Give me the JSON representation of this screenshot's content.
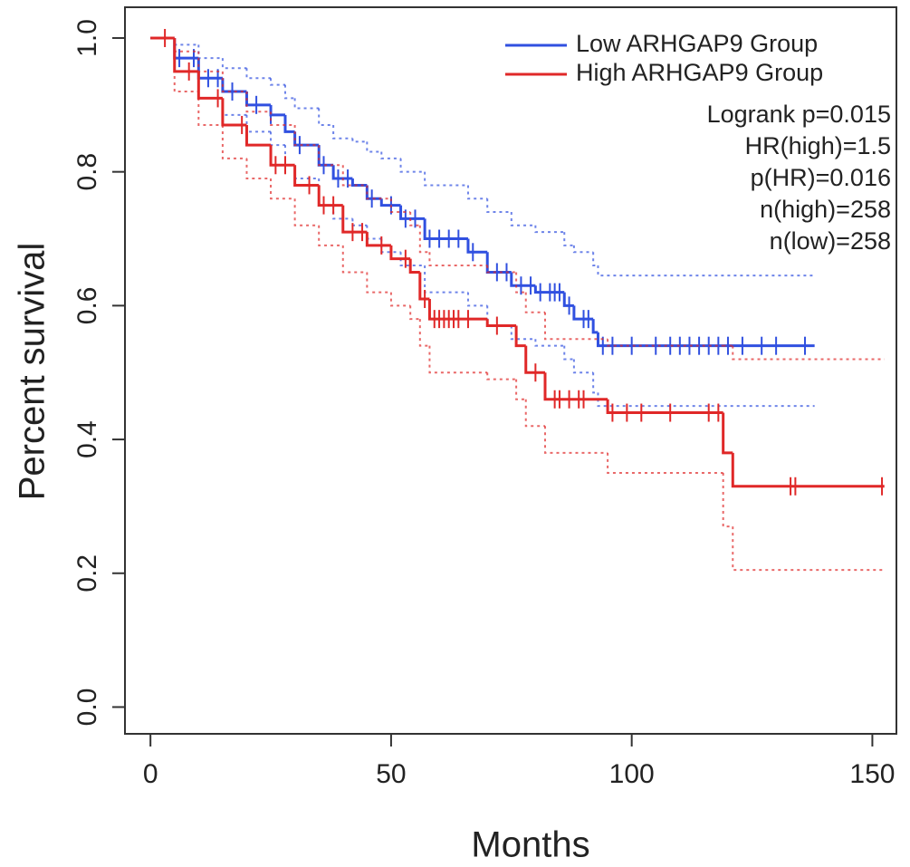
{
  "chart_data": {
    "type": "survival",
    "xlabel": "Months",
    "ylabel": "Percent survival",
    "xlim": [
      -5.3,
      155
    ],
    "ylim": [
      -0.04,
      1.046
    ],
    "xticks": [
      0,
      50,
      100,
      150
    ],
    "yticks": [
      {
        "value": 0,
        "label": "0.0"
      },
      0.2,
      0.4,
      0.6,
      0.8,
      {
        "value": 1,
        "label": "1.0"
      }
    ],
    "series": [
      {
        "name": "Low ARHGAP9 Group",
        "color": "#3050e0",
        "x": [
          0,
          5,
          10,
          15,
          20,
          25,
          28,
          30,
          35,
          38,
          42,
          45,
          48,
          52,
          57,
          66,
          70,
          75,
          80,
          86,
          88,
          92,
          93,
          138
        ],
        "y": [
          1.0,
          0.97,
          0.94,
          0.92,
          0.9,
          0.885,
          0.86,
          0.84,
          0.81,
          0.79,
          0.78,
          0.76,
          0.75,
          0.73,
          0.7,
          0.68,
          0.65,
          0.63,
          0.62,
          0.6,
          0.58,
          0.56,
          0.54,
          0.54
        ],
        "ci_upper": [
          1.0,
          0.99,
          0.97,
          0.955,
          0.94,
          0.93,
          0.91,
          0.895,
          0.87,
          0.85,
          0.845,
          0.83,
          0.82,
          0.8,
          0.78,
          0.76,
          0.74,
          0.72,
          0.71,
          0.69,
          0.68,
          0.66,
          0.645,
          0.645
        ],
        "ci_lower": [
          1.0,
          0.95,
          0.91,
          0.885,
          0.86,
          0.84,
          0.81,
          0.79,
          0.75,
          0.73,
          0.72,
          0.7,
          0.68,
          0.66,
          0.62,
          0.6,
          0.57,
          0.55,
          0.54,
          0.52,
          0.5,
          0.47,
          0.45,
          0.45
        ],
        "censor": [
          6,
          9,
          12,
          14,
          17,
          22,
          25,
          31,
          36,
          39,
          41,
          46,
          50,
          53,
          55,
          58,
          60,
          62,
          64,
          67,
          72,
          74,
          77,
          79,
          81,
          83,
          84,
          85,
          87,
          90,
          91,
          94,
          96,
          100,
          105,
          108,
          110,
          112,
          114,
          116,
          118,
          120,
          123,
          127,
          130,
          136
        ]
      },
      {
        "name": "High ARHGAP9 Group",
        "color": "#e02828",
        "x": [
          0,
          5,
          10,
          15,
          20,
          25,
          30,
          35,
          40,
          45,
          50,
          54,
          56,
          58,
          70,
          76,
          78,
          82,
          95,
          119,
          121,
          152.5
        ],
        "y": [
          1.0,
          0.95,
          0.91,
          0.87,
          0.84,
          0.81,
          0.78,
          0.75,
          0.71,
          0.69,
          0.67,
          0.65,
          0.61,
          0.58,
          0.57,
          0.54,
          0.5,
          0.46,
          0.44,
          0.38,
          0.33,
          0.33
        ],
        "ci_upper": [
          1.0,
          0.98,
          0.95,
          0.92,
          0.89,
          0.87,
          0.84,
          0.81,
          0.78,
          0.76,
          0.74,
          0.72,
          0.68,
          0.66,
          0.65,
          0.62,
          0.59,
          0.55,
          0.54,
          0.54,
          0.52,
          0.52
        ],
        "ci_lower": [
          1.0,
          0.92,
          0.87,
          0.82,
          0.79,
          0.76,
          0.72,
          0.69,
          0.65,
          0.62,
          0.6,
          0.58,
          0.54,
          0.5,
          0.49,
          0.46,
          0.42,
          0.38,
          0.35,
          0.27,
          0.205,
          0.205
        ],
        "censor": [
          3,
          8,
          14,
          19,
          26,
          28,
          33,
          36,
          38,
          42,
          44,
          48,
          53,
          57,
          59,
          60,
          61,
          62,
          63,
          64,
          66,
          72,
          80,
          84,
          85,
          87,
          89,
          90,
          96,
          99,
          102,
          108,
          116,
          118,
          133,
          134,
          152
        ]
      }
    ],
    "annotations": [
      "Logrank p=0.015",
      "HR(high)=1.5",
      "p(HR)=0.016",
      "n(high)=258",
      "n(low)=258"
    ]
  }
}
